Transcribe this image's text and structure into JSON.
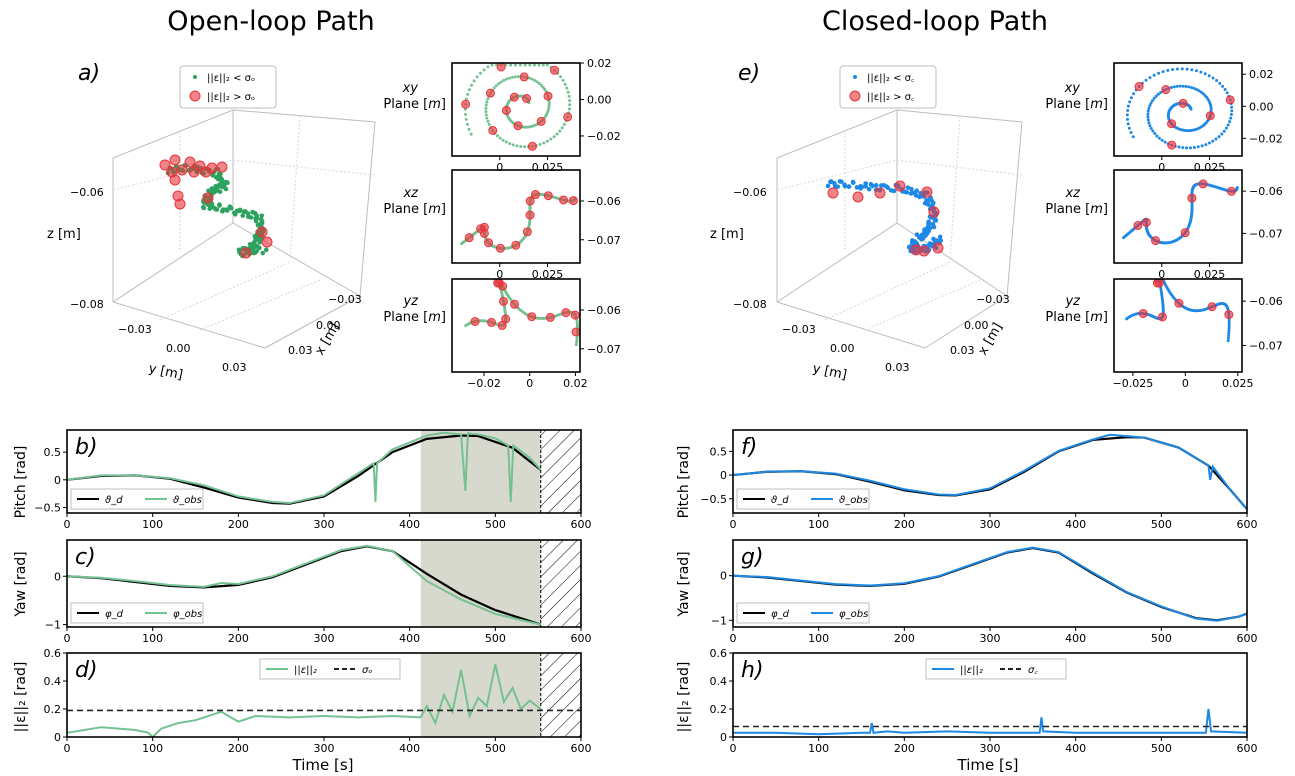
{
  "titles": {
    "left": "Open-loop Path",
    "right": "Closed-loop Path"
  },
  "colors": {
    "open": "#2ca25f",
    "open_light": "#74c191",
    "closed": "#1e88e5",
    "outlier": "#e8343c",
    "desired": "#000000",
    "shade": "#d7d9cf"
  },
  "labels": {
    "a": "a)",
    "b": "b)",
    "c": "c)",
    "d": "d)",
    "e": "e)",
    "f": "f)",
    "g": "g)",
    "h": "h)",
    "pitch": "Pitch [rad]",
    "yaw": "Yaw [rad]",
    "err": "||ε||₂ [rad]",
    "time": "Time [s]",
    "x3d": "x [m]",
    "y3d": "y [m]",
    "z3d": "z [m]",
    "xy_plane": "xy\nPlane [m]",
    "xz_plane": "xz\nPlane [m]",
    "yz_plane": "yz\nPlane [m]"
  },
  "legends": {
    "a": [
      "||ε||₂ < σₒ",
      "||ε||₂ > σₒ"
    ],
    "e": [
      "||ε||₂ < σ꜀",
      "||ε||₂ > σ꜀"
    ],
    "b": [
      "ϑ_d",
      "ϑ_obs"
    ],
    "c": [
      "φ_d",
      "φ_obs"
    ],
    "d": [
      "||ε||₂",
      "σₒ"
    ],
    "f": [
      "ϑ_d",
      "ϑ_obs"
    ],
    "g": [
      "φ_d",
      "φ_obs"
    ],
    "h": [
      "||ε||₂",
      "σ꜀"
    ]
  },
  "chart_data": [
    {
      "id": "a",
      "type": "scatter",
      "title": "",
      "dims": 3,
      "xlabel": "x [m]",
      "ylabel": "y [m]",
      "zlabel": "z [m]",
      "xticks": [
        -0.03,
        0.0,
        0.03
      ],
      "yticks": [
        -0.03,
        0.0,
        0.03
      ],
      "zticks": [
        -0.08,
        -0.06
      ],
      "series": [
        {
          "name": "||ε||₂ < σₒ",
          "color": "#2ca25f"
        },
        {
          "name": "||ε||₂ > σₒ",
          "color": "#e8343c"
        }
      ]
    },
    {
      "id": "a-xy",
      "type": "scatter",
      "xticks": [
        0.0,
        0.025
      ],
      "yticks": [
        0.02,
        0.0,
        -0.02
      ],
      "xlim": [
        -0.025,
        0.042
      ],
      "ylim": [
        -0.031,
        0.02
      ]
    },
    {
      "id": "a-xz",
      "type": "scatter",
      "xticks": [
        0.0,
        0.025
      ],
      "yticks": [
        -0.06,
        -0.07
      ],
      "xlim": [
        -0.025,
        0.042
      ],
      "ylim": [
        -0.076,
        -0.052
      ]
    },
    {
      "id": "a-yz",
      "type": "scatter",
      "xticks": [
        -0.02,
        0.0,
        0.02
      ],
      "yticks": [
        -0.06,
        -0.07
      ],
      "xlim": [
        -0.034,
        0.022
      ],
      "ylim": [
        -0.076,
        -0.052
      ]
    },
    {
      "id": "e",
      "type": "scatter",
      "title": "",
      "dims": 3,
      "xlabel": "x [m]",
      "ylabel": "y [m]",
      "zlabel": "z [m]",
      "xticks": [
        -0.03,
        0.0,
        0.03
      ],
      "yticks": [
        -0.03,
        0.0,
        0.03
      ],
      "zticks": [
        -0.08,
        -0.06
      ],
      "series": [
        {
          "name": "||ε||₂ < σ꜀",
          "color": "#1e88e5"
        },
        {
          "name": "||ε||₂ > σ꜀",
          "color": "#e8343c"
        }
      ]
    },
    {
      "id": "e-xy",
      "type": "scatter",
      "xticks": [
        0.0,
        0.025
      ],
      "yticks": [
        0.02,
        0.0,
        -0.02
      ],
      "xlim": [
        -0.025,
        0.042
      ],
      "ylim": [
        -0.031,
        0.027
      ]
    },
    {
      "id": "e-xz",
      "type": "scatter",
      "xticks": [
        0.0,
        0.025
      ],
      "yticks": [
        -0.06,
        -0.07
      ],
      "xlim": [
        -0.025,
        0.042
      ],
      "ylim": [
        -0.077,
        -0.055
      ]
    },
    {
      "id": "e-yz",
      "type": "scatter",
      "xticks": [
        -0.025,
        0.0,
        0.025
      ],
      "yticks": [
        -0.06,
        -0.07
      ],
      "xlim": [
        -0.034,
        0.027
      ],
      "ylim": [
        -0.076,
        -0.055
      ]
    },
    {
      "id": "b",
      "type": "line",
      "xlim": [
        0,
        600
      ],
      "ylim": [
        -0.6,
        0.9
      ],
      "yticks": [
        0.5,
        0.0,
        -0.5
      ],
      "xticks": [
        0,
        100,
        200,
        300,
        400,
        500,
        600
      ],
      "ylabel": "Pitch [rad]",
      "shade": [
        413,
        553
      ],
      "hatch": [
        553,
        600
      ],
      "series": [
        {
          "name": "ϑ_d",
          "x": [
            0,
            40,
            80,
            120,
            160,
            200,
            240,
            260,
            300,
            340,
            380,
            420,
            460,
            480,
            520,
            553
          ],
          "values": [
            0.0,
            0.07,
            0.08,
            0.02,
            -0.14,
            -0.32,
            -0.42,
            -0.43,
            -0.3,
            0.07,
            0.5,
            0.74,
            0.8,
            0.79,
            0.58,
            0.18
          ]
        },
        {
          "name": "ϑ_obs",
          "x": [
            0,
            40,
            80,
            120,
            160,
            200,
            240,
            260,
            300,
            340,
            358,
            360,
            362,
            380,
            420,
            440,
            460,
            465,
            468,
            480,
            500,
            515,
            518,
            521,
            540,
            553
          ],
          "values": [
            0.0,
            0.08,
            0.08,
            0.03,
            -0.1,
            -0.3,
            -0.4,
            -0.42,
            -0.28,
            0.12,
            0.3,
            -0.4,
            0.3,
            0.55,
            0.8,
            0.85,
            0.82,
            -0.2,
            0.84,
            0.82,
            0.75,
            0.62,
            -0.4,
            0.62,
            0.4,
            0.18
          ]
        }
      ]
    },
    {
      "id": "c",
      "type": "line",
      "xlim": [
        0,
        600
      ],
      "ylim": [
        -1.05,
        0.75
      ],
      "yticks": [
        0,
        -1
      ],
      "xticks": [
        0,
        100,
        200,
        300,
        400,
        500,
        600
      ],
      "ylabel": "Yaw [rad]",
      "shade": [
        413,
        553
      ],
      "hatch": [
        553,
        600
      ],
      "series": [
        {
          "name": "φ_d",
          "x": [
            0,
            40,
            80,
            120,
            160,
            200,
            240,
            280,
            320,
            350,
            380,
            420,
            460,
            500,
            553
          ],
          "values": [
            0.0,
            -0.04,
            -0.12,
            -0.2,
            -0.23,
            -0.18,
            -0.02,
            0.25,
            0.52,
            0.62,
            0.52,
            0.05,
            -0.38,
            -0.7,
            -1.0
          ]
        },
        {
          "name": "φ_obs",
          "x": [
            0,
            40,
            80,
            120,
            160,
            180,
            200,
            240,
            280,
            320,
            350,
            380,
            420,
            460,
            500,
            553
          ],
          "values": [
            0.0,
            -0.03,
            -0.1,
            -0.18,
            -0.22,
            -0.14,
            -0.16,
            0.0,
            0.27,
            0.54,
            0.63,
            0.52,
            -0.1,
            -0.48,
            -0.78,
            -1.0
          ]
        }
      ]
    },
    {
      "id": "d",
      "type": "line",
      "xlim": [
        0,
        600
      ],
      "ylim": [
        0,
        0.6
      ],
      "yticks": [
        0.0,
        0.2,
        0.4,
        0.6
      ],
      "xticks": [
        0,
        100,
        200,
        300,
        400,
        500,
        600
      ],
      "ylabel": "||ε||₂ [rad]",
      "shade": [
        413,
        553
      ],
      "hatch": [
        553,
        600
      ],
      "series": [
        {
          "name": "||ε||₂",
          "x": [
            0,
            20,
            40,
            60,
            80,
            95,
            100,
            110,
            130,
            150,
            180,
            200,
            220,
            260,
            300,
            340,
            380,
            413,
            420,
            430,
            440,
            450,
            460,
            470,
            480,
            490,
            500,
            510,
            520,
            530,
            540,
            553
          ],
          "values": [
            0.03,
            0.05,
            0.07,
            0.06,
            0.05,
            0.03,
            0.0,
            0.06,
            0.1,
            0.12,
            0.18,
            0.11,
            0.15,
            0.14,
            0.15,
            0.14,
            0.15,
            0.14,
            0.22,
            0.1,
            0.3,
            0.18,
            0.48,
            0.15,
            0.28,
            0.22,
            0.52,
            0.25,
            0.35,
            0.2,
            0.26,
            0.2
          ]
        },
        {
          "name": "σₒ",
          "x": [
            0,
            600
          ],
          "values": [
            0.19,
            0.19
          ]
        }
      ]
    },
    {
      "id": "f",
      "type": "line",
      "xlim": [
        0,
        600
      ],
      "ylim": [
        -0.8,
        0.95
      ],
      "yticks": [
        0.5,
        0.0,
        -0.5
      ],
      "xticks": [
        0,
        100,
        200,
        300,
        400,
        500,
        600
      ],
      "ylabel": "Pitch [rad]",
      "series": [
        {
          "name": "ϑ_d",
          "x": [
            0,
            40,
            80,
            120,
            160,
            200,
            240,
            260,
            300,
            340,
            380,
            420,
            460,
            480,
            520,
            555,
            580,
            600
          ],
          "values": [
            0.0,
            0.07,
            0.08,
            0.02,
            -0.14,
            -0.32,
            -0.42,
            -0.43,
            -0.3,
            0.07,
            0.5,
            0.74,
            0.8,
            0.79,
            0.58,
            0.2,
            -0.3,
            -0.72
          ]
        },
        {
          "name": "ϑ_obs",
          "x": [
            0,
            40,
            80,
            120,
            160,
            200,
            240,
            260,
            300,
            340,
            380,
            420,
            440,
            460,
            480,
            520,
            555,
            557,
            560,
            580,
            600
          ],
          "values": [
            0.0,
            0.07,
            0.08,
            0.03,
            -0.12,
            -0.3,
            -0.41,
            -0.42,
            -0.28,
            0.09,
            0.51,
            0.75,
            0.85,
            0.82,
            0.79,
            0.58,
            0.2,
            -0.1,
            0.18,
            -0.3,
            -0.72
          ]
        }
      ]
    },
    {
      "id": "g",
      "type": "line",
      "xlim": [
        0,
        600
      ],
      "ylim": [
        -1.15,
        0.8
      ],
      "yticks": [
        0,
        -1
      ],
      "xticks": [
        0,
        100,
        200,
        300,
        400,
        500,
        600
      ],
      "ylabel": "Yaw [rad]",
      "series": [
        {
          "name": "φ_d",
          "x": [
            0,
            40,
            80,
            120,
            160,
            200,
            240,
            280,
            320,
            350,
            380,
            420,
            460,
            500,
            540,
            565,
            590,
            600
          ],
          "values": [
            0.0,
            -0.04,
            -0.12,
            -0.2,
            -0.23,
            -0.18,
            -0.02,
            0.25,
            0.52,
            0.62,
            0.52,
            0.05,
            -0.38,
            -0.7,
            -0.95,
            -1.0,
            -0.92,
            -0.85
          ]
        },
        {
          "name": "φ_obs",
          "x": [
            0,
            40,
            80,
            120,
            160,
            200,
            240,
            280,
            320,
            350,
            380,
            420,
            460,
            500,
            540,
            565,
            590,
            600
          ],
          "values": [
            0.0,
            -0.03,
            -0.11,
            -0.19,
            -0.22,
            -0.17,
            -0.01,
            0.26,
            0.53,
            0.63,
            0.53,
            0.07,
            -0.37,
            -0.69,
            -0.96,
            -1.01,
            -0.92,
            -0.85
          ]
        }
      ]
    },
    {
      "id": "h",
      "type": "line",
      "xlim": [
        0,
        600
      ],
      "ylim": [
        0,
        0.6
      ],
      "yticks": [
        0.0,
        0.2,
        0.4,
        0.6
      ],
      "xticks": [
        0,
        100,
        200,
        300,
        400,
        500,
        600
      ],
      "ylabel": "||ε||₂ [rad]",
      "series": [
        {
          "name": "||ε||₂",
          "x": [
            0,
            50,
            100,
            150,
            160,
            162,
            164,
            180,
            200,
            250,
            300,
            358,
            360,
            362,
            400,
            450,
            500,
            552,
            555,
            558,
            600
          ],
          "values": [
            0.03,
            0.03,
            0.02,
            0.03,
            0.03,
            0.1,
            0.03,
            0.04,
            0.03,
            0.04,
            0.03,
            0.03,
            0.14,
            0.04,
            0.03,
            0.03,
            0.03,
            0.03,
            0.2,
            0.04,
            0.03
          ]
        },
        {
          "name": "σ꜀",
          "x": [
            0,
            600
          ],
          "values": [
            0.075,
            0.075
          ]
        }
      ]
    }
  ]
}
